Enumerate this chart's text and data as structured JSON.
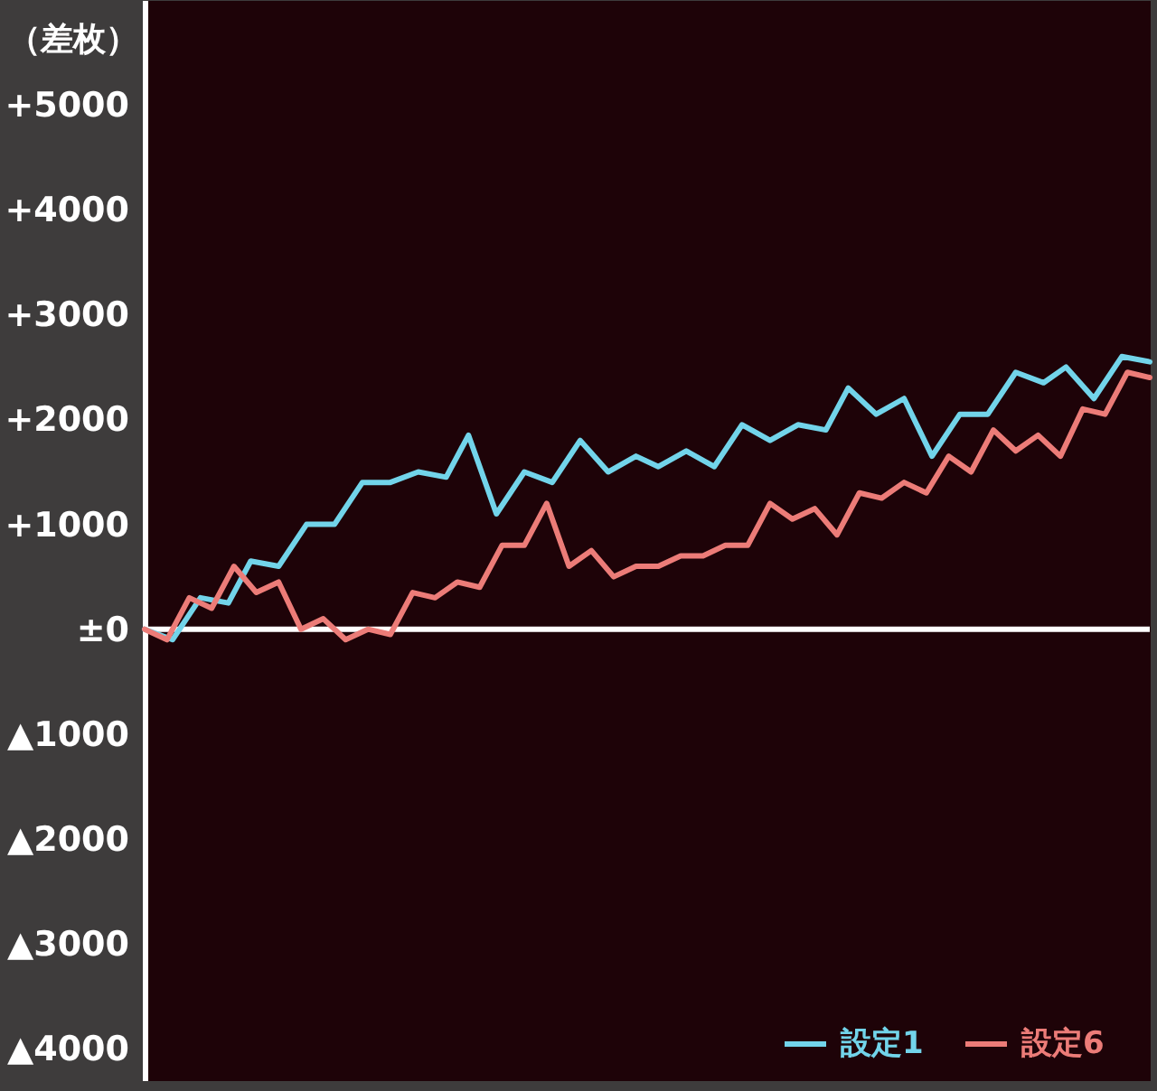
{
  "chart_data": {
    "type": "line",
    "ylabel": "（差枚）",
    "ylim": [
      -4300,
      6000
    ],
    "categories": [
      null,
      null,
      null,
      null,
      null,
      null,
      null,
      null,
      null,
      null,
      null,
      null,
      null,
      null,
      null,
      null,
      null,
      null,
      null,
      null,
      null,
      null,
      null,
      null,
      null,
      null,
      null,
      null,
      null,
      null,
      null,
      null,
      null,
      null,
      null,
      null,
      null,
      null,
      null,
      null,
      null,
      null,
      null,
      null,
      null,
      null,
      null,
      null,
      null,
      null,
      null,
      null,
      null,
      null,
      null,
      null,
      null,
      null,
      null,
      null,
      null,
      null,
      null,
      null,
      null,
      null,
      null,
      null,
      null,
      null,
      null,
      null,
      null,
      null,
      null,
      null,
      null,
      null,
      null,
      null,
      null,
      null,
      null,
      null,
      null,
      null,
      null,
      null,
      null,
      null,
      null,
      null,
      null,
      null,
      null,
      null,
      null,
      null,
      null,
      null,
      null,
      null,
      null,
      null,
      null,
      null,
      null,
      null,
      null,
      null,
      null,
      null,
      null,
      null,
      null,
      null,
      null,
      null,
      null,
      null,
      null,
      null,
      null,
      null,
      null,
      null,
      null,
      null,
      null,
      null,
      null,
      null,
      null,
      null,
      null,
      null,
      null,
      null,
      null,
      null,
      null,
      null,
      null,
      null,
      null,
      null,
      null,
      null,
      null,
      null,
      null,
      null,
      null,
      null,
      null,
      null,
      null,
      null,
      null,
      null,
      null,
      null,
      null,
      null,
      null,
      null,
      null,
      null,
      null,
      null,
      null,
      null,
      null,
      null,
      null,
      null,
      null,
      null,
      null,
      null,
      null
    ],
    "yticks": [
      {
        "value": 5000,
        "label": "+5000"
      },
      {
        "value": 4000,
        "label": "+4000"
      },
      {
        "value": 3000,
        "label": "+3000"
      },
      {
        "value": 2000,
        "label": "+2000"
      },
      {
        "value": 1000,
        "label": "+1000"
      },
      {
        "value": 0,
        "label": "±0"
      },
      {
        "value": -1000,
        "label": "▲1000"
      },
      {
        "value": -2000,
        "label": "▲2000"
      },
      {
        "value": -3000,
        "label": "▲3000"
      },
      {
        "value": -4000,
        "label": "▲4000"
      }
    ],
    "tick_labels": "y",
    "legend": "bottom right",
    "line_style": "solid",
    "ref_lines": [
      {
        "axis": "y",
        "value": 0,
        "color": "#ffffff"
      }
    ],
    "series": [
      {
        "name": "設定1",
        "color": "#72d4ea",
        "values": [
          0,
          null,
          null,
          null,
          null,
          -100,
          null,
          null,
          null,
          null,
          300,
          null,
          null,
          null,
          null,
          250,
          null,
          null,
          null,
          650,
          null,
          null,
          null,
          null,
          600,
          null,
          null,
          null,
          null,
          1000,
          null,
          null,
          null,
          null,
          1000,
          null,
          null,
          null,
          null,
          1400,
          null,
          null,
          null,
          null,
          1400,
          null,
          null,
          null,
          null,
          1500,
          null,
          null,
          null,
          null,
          1450,
          null,
          null,
          null,
          1850,
          null,
          null,
          null,
          null,
          1100,
          null,
          null,
          null,
          null,
          1500,
          null,
          null,
          null,
          null,
          1400,
          null,
          null,
          null,
          null,
          1800,
          null,
          null,
          null,
          null,
          1500,
          null,
          null,
          null,
          null,
          1650,
          null,
          null,
          null,
          1550,
          null,
          null,
          null,
          null,
          1700,
          null,
          null,
          null,
          null,
          1550,
          null,
          null,
          null,
          null,
          1950,
          null,
          null,
          null,
          null,
          1800,
          null,
          null,
          null,
          null,
          1950,
          null,
          null,
          null,
          null,
          1900,
          null,
          null,
          null,
          2300,
          null,
          null,
          null,
          null,
          2050,
          null,
          null,
          null,
          null,
          2200,
          null,
          null,
          null,
          null,
          1650,
          null,
          null,
          null,
          null,
          2050,
          null,
          null,
          null,
          null,
          2050,
          null,
          null,
          null,
          null,
          2450,
          null,
          null,
          null,
          null,
          2350,
          null,
          null,
          null,
          2500,
          null,
          null,
          null,
          null,
          2200,
          null,
          null,
          null,
          null,
          2600,
          null,
          null,
          null,
          null,
          2550
        ]
      },
      {
        "name": "設定6",
        "color": "#ec7c78",
        "values": [
          0,
          null,
          null,
          null,
          -100,
          null,
          null,
          null,
          300,
          null,
          null,
          null,
          200,
          null,
          null,
          null,
          600,
          null,
          null,
          null,
          350,
          null,
          null,
          null,
          450,
          null,
          null,
          null,
          0,
          null,
          null,
          null,
          100,
          null,
          null,
          null,
          -100,
          null,
          null,
          null,
          0,
          null,
          null,
          null,
          -50,
          null,
          null,
          null,
          350,
          null,
          null,
          null,
          300,
          null,
          null,
          null,
          450,
          null,
          null,
          null,
          400,
          null,
          null,
          null,
          800,
          null,
          null,
          null,
          800,
          null,
          null,
          null,
          1200,
          null,
          null,
          null,
          600,
          null,
          null,
          null,
          750,
          null,
          null,
          null,
          500,
          null,
          null,
          null,
          600,
          null,
          null,
          null,
          600,
          null,
          null,
          null,
          700,
          null,
          null,
          null,
          700,
          null,
          null,
          null,
          800,
          null,
          null,
          null,
          800,
          null,
          null,
          null,
          1200,
          null,
          null,
          null,
          1050,
          null,
          null,
          null,
          1150,
          null,
          null,
          null,
          900,
          null,
          null,
          null,
          1300,
          null,
          null,
          null,
          1250,
          null,
          null,
          null,
          1400,
          null,
          null,
          null,
          1300,
          null,
          null,
          null,
          1650,
          null,
          null,
          null,
          1500,
          null,
          null,
          null,
          1900,
          null,
          null,
          null,
          1700,
          null,
          null,
          null,
          1850,
          null,
          null,
          null,
          1650,
          null,
          null,
          null,
          2100,
          null,
          null,
          null,
          2050,
          null,
          null,
          null,
          2450,
          null,
          null,
          null,
          2400
        ]
      }
    ]
  }
}
